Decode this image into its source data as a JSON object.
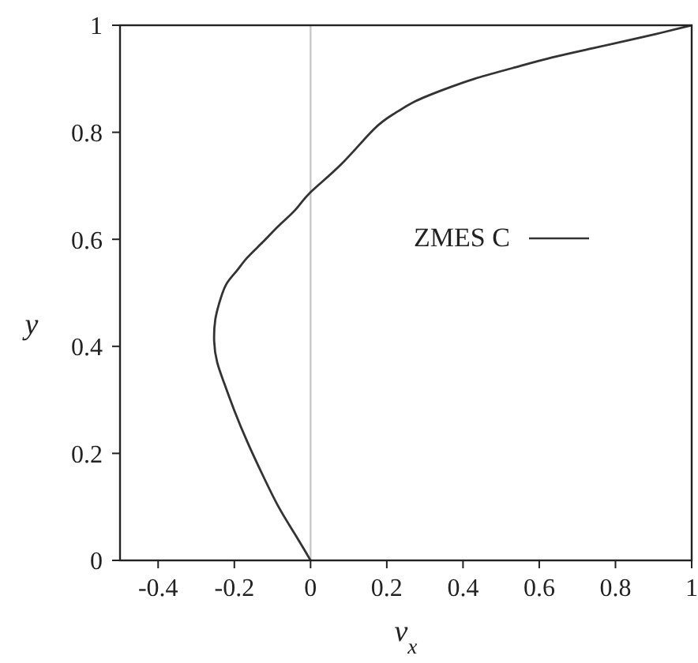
{
  "chart_data": {
    "type": "line",
    "xlabel": "v$_{x}$",
    "ylabel": "y",
    "x": [
      0,
      -0.042,
      -0.084,
      -0.126,
      -0.165,
      -0.2,
      -0.226,
      -0.245,
      -0.253,
      -0.25,
      -0.24,
      -0.222,
      -0.195,
      -0.167,
      -0.125,
      -0.084,
      -0.04,
      0,
      0.08,
      0.165,
      0.22,
      0.275,
      0.35,
      0.43,
      0.53,
      0.635,
      0.74,
      0.84,
      0.92,
      1
    ],
    "series": [
      {
        "name": "ZMES C",
        "color": "#333333",
        "values": [
          0,
          0.05,
          0.1,
          0.16,
          0.22,
          0.28,
          0.33,
          0.37,
          0.41,
          0.45,
          0.48,
          0.515,
          0.54,
          0.565,
          0.595,
          0.625,
          0.655,
          0.688,
          0.74,
          0.805,
          0.835,
          0.858,
          0.88,
          0.9,
          0.92,
          0.94,
          0.957,
          0.973,
          0.986,
          1
        ]
      }
    ],
    "xlim": [
      -0.5,
      1
    ],
    "ylim": [
      0,
      1
    ],
    "xticks": [
      -0.4,
      -0.2,
      0,
      0.2,
      0.4,
      0.6,
      0.8,
      1
    ],
    "yticks": [
      0,
      0.2,
      0.4,
      0.6,
      0.8,
      1
    ],
    "ref_lines": [
      {
        "axis": "x",
        "value": 0,
        "color": "#c8c8c8"
      }
    ],
    "legend": "right"
  }
}
